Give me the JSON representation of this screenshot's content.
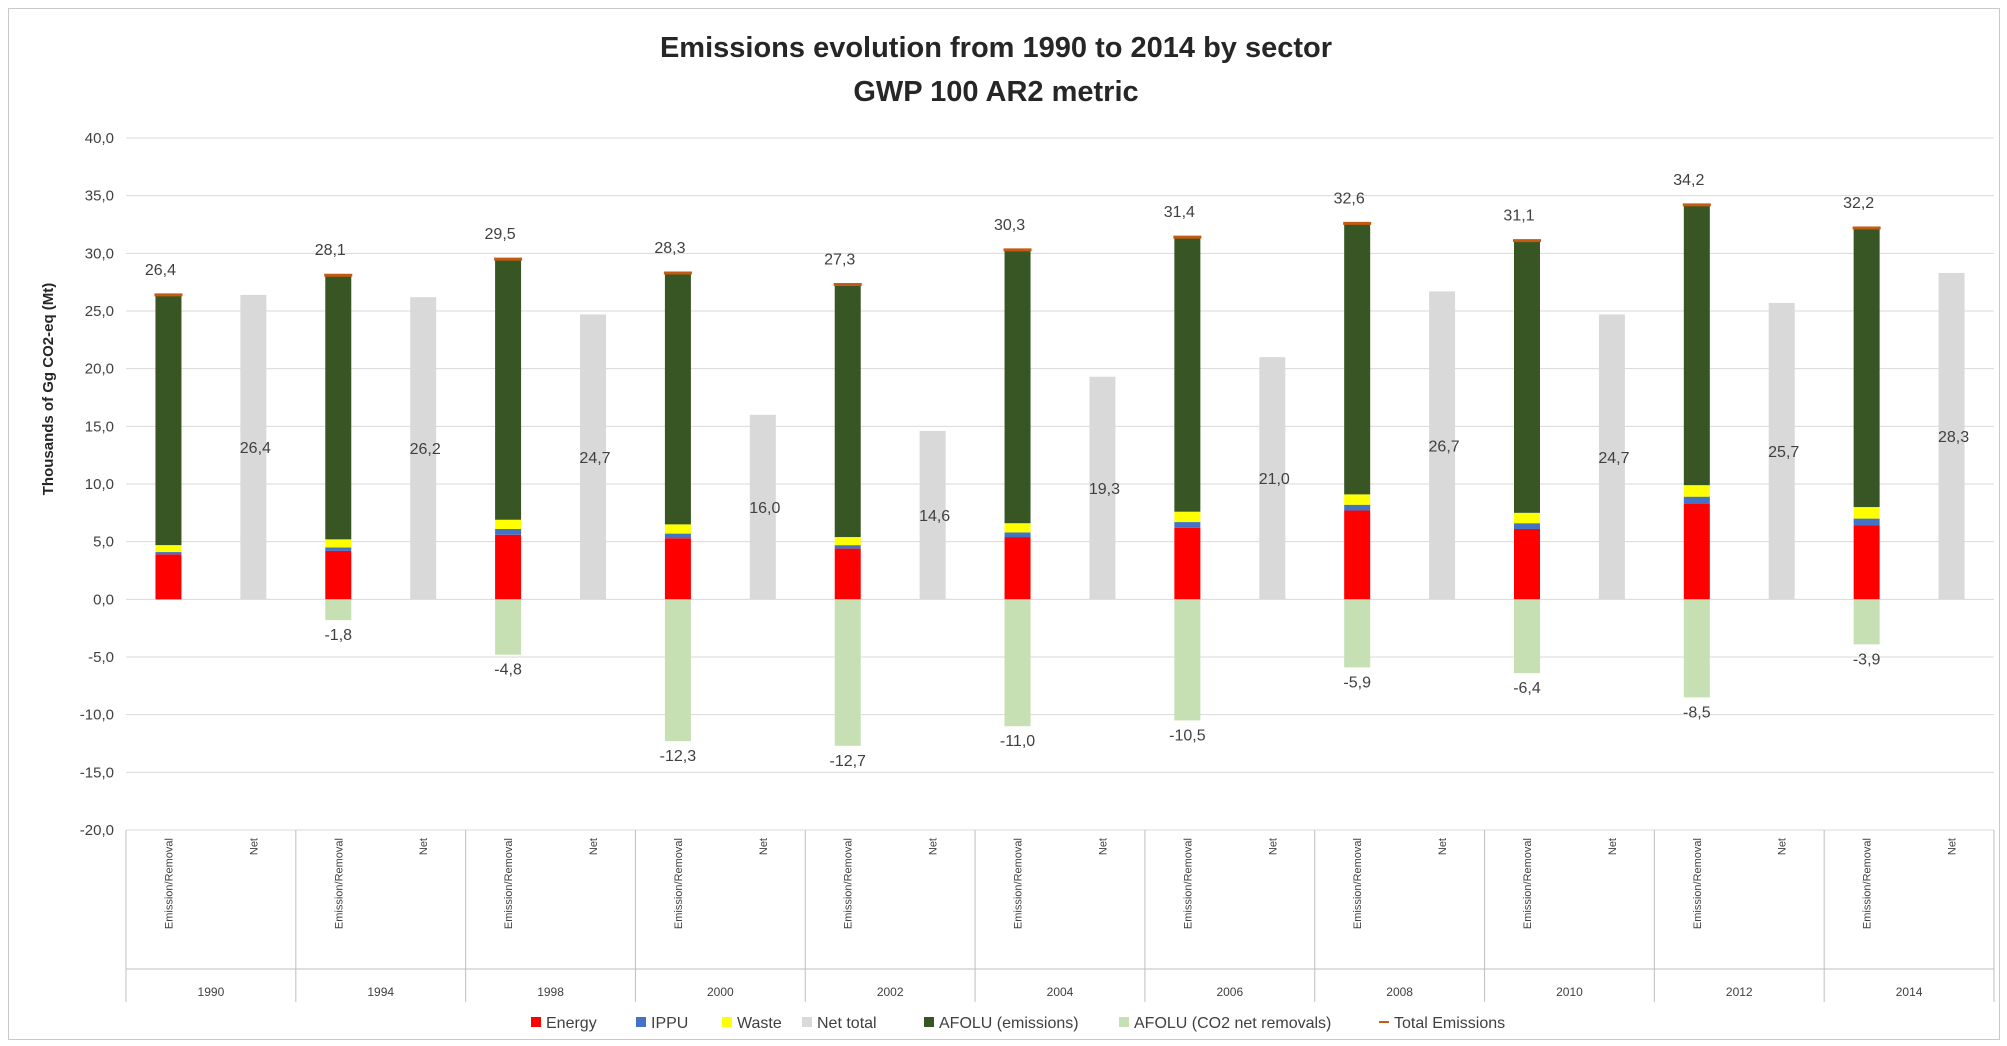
{
  "chart_data": {
    "type": "bar",
    "title": "Emissions evolution from 1990 to 2014 by sector",
    "subtitle": "GWP 100 AR2 metric",
    "ylabel": "Thousands of  Gg CO2-eq (Mt)",
    "ylim": [
      -20,
      40
    ],
    "ytick_labels": [
      "40,0",
      "35,0",
      "30,0",
      "25,0",
      "20,0",
      "15,0",
      "10,0",
      "5,0",
      "0,0",
      "-5,0",
      "-10,0",
      "-15,0",
      "-20,0"
    ],
    "grid": true,
    "legend_position": "bottom",
    "bar_labels": [
      "Emission/Removal",
      "Net"
    ],
    "categories": [
      "1990",
      "1994",
      "1998",
      "2000",
      "2002",
      "2004",
      "2006",
      "2008",
      "2010",
      "2012",
      "2014"
    ],
    "series": [
      {
        "name": "Energy",
        "color": "#ff0000",
        "bar": "Emission/Removal",
        "values": [
          3.9,
          4.2,
          5.6,
          5.3,
          4.4,
          5.4,
          6.2,
          7.7,
          6.1,
          8.3,
          6.4
        ]
      },
      {
        "name": "IPPU",
        "color": "#4472c4",
        "bar": "Emission/Removal",
        "values": [
          0.2,
          0.3,
          0.5,
          0.4,
          0.3,
          0.4,
          0.5,
          0.5,
          0.5,
          0.6,
          0.6
        ]
      },
      {
        "name": "Waste",
        "color": "#ffff00",
        "bar": "Emission/Removal",
        "values": [
          0.6,
          0.7,
          0.8,
          0.8,
          0.7,
          0.8,
          0.9,
          0.9,
          0.9,
          1.0,
          1.0
        ]
      },
      {
        "name": "Net total",
        "color": "#d9d9d9",
        "bar": "Net",
        "values": [
          26.4,
          26.2,
          24.7,
          16.0,
          14.6,
          19.3,
          21.0,
          26.7,
          24.7,
          25.7,
          28.3
        ]
      },
      {
        "name": "AFOLU (emissions)",
        "color": "#375623",
        "bar": "Emission/Removal",
        "values": [
          21.7,
          22.9,
          22.6,
          21.8,
          21.9,
          23.7,
          23.8,
          23.5,
          23.6,
          24.3,
          24.2
        ]
      },
      {
        "name": "AFOLU (CO2 net removals)",
        "color": "#c6e0b4",
        "bar": "Emission/Removal",
        "values": [
          0.0,
          -1.8,
          -4.8,
          -12.3,
          -12.7,
          -11.0,
          -10.5,
          -5.9,
          -6.4,
          -8.5,
          -3.9
        ]
      },
      {
        "name": "Total Emissions",
        "color": "#c55a11",
        "bar": "Emission/Removal",
        "values": [
          26.4,
          28.1,
          29.5,
          28.3,
          27.3,
          30.3,
          31.4,
          32.6,
          31.1,
          34.2,
          32.2
        ]
      }
    ],
    "total_labels": [
      "26,4",
      "28,1",
      "29,5",
      "28,3",
      "27,3",
      "30,3",
      "31,4",
      "32,6",
      "31,1",
      "34,2",
      "32,2"
    ],
    "net_labels": [
      "26,4",
      "26,2",
      "24,7",
      "16,0",
      "14,6",
      "19,3",
      "21,0",
      "26,7",
      "24,7",
      "25,7",
      "28,3"
    ],
    "removal_labels": [
      "",
      "-1,8",
      "-4,8",
      "-12,3",
      "-12,7",
      "-11,0",
      "-10,5",
      "-5,9",
      "-6,4",
      "-8,5",
      "-3,9"
    ]
  }
}
